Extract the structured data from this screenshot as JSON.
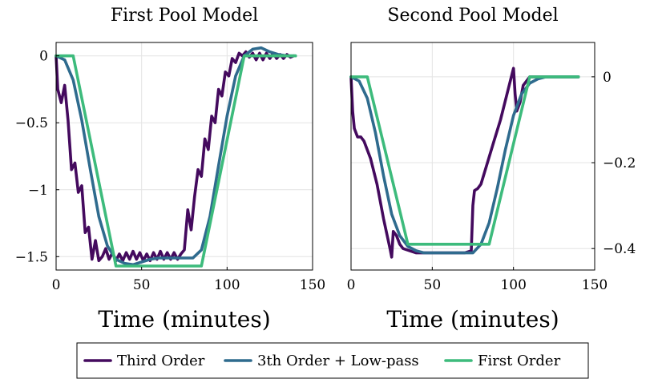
{
  "chart_data": [
    {
      "type": "line",
      "title": "First Pool Model",
      "xlabel": "Time (minutes)",
      "ylabel": "",
      "xlim": [
        0,
        150
      ],
      "ylim": [
        -1.6,
        0.1
      ],
      "xticks": [
        0,
        50,
        100,
        150
      ],
      "xtick_labels": [
        "0",
        "50",
        "100",
        "150"
      ],
      "yticks": [
        0,
        -0.5,
        -1,
        -1.5
      ],
      "ytick_labels": [
        "0",
        "−0.5",
        "−1",
        "−1.5"
      ],
      "y_axis_side": "left",
      "grid": true,
      "series": [
        {
          "name": "Third Order",
          "color": "#440a5e",
          "x": [
            0,
            1,
            3,
            5,
            7,
            9,
            11,
            13,
            15,
            17,
            19,
            21,
            23,
            25,
            27,
            29,
            31,
            33,
            35,
            37,
            39,
            41,
            43,
            45,
            47,
            49,
            51,
            53,
            55,
            57,
            59,
            61,
            63,
            65,
            67,
            69,
            71,
            73,
            75,
            77,
            79,
            81,
            83,
            85,
            87,
            89,
            91,
            93,
            95,
            97,
            99,
            101,
            103,
            105,
            107,
            109,
            111,
            113,
            115,
            117,
            119,
            121,
            123,
            125,
            127,
            129,
            131,
            133,
            135,
            137,
            139
          ],
          "y": [
            0,
            -0.25,
            -0.35,
            -0.22,
            -0.48,
            -0.85,
            -0.8,
            -1.02,
            -0.97,
            -1.32,
            -1.28,
            -1.52,
            -1.38,
            -1.53,
            -1.5,
            -1.44,
            -1.52,
            -1.47,
            -1.53,
            -1.48,
            -1.53,
            -1.47,
            -1.52,
            -1.46,
            -1.52,
            -1.47,
            -1.53,
            -1.48,
            -1.53,
            -1.47,
            -1.52,
            -1.46,
            -1.52,
            -1.47,
            -1.52,
            -1.47,
            -1.52,
            -1.48,
            -1.45,
            -1.15,
            -1.3,
            -1.05,
            -0.85,
            -0.9,
            -0.62,
            -0.7,
            -0.45,
            -0.5,
            -0.25,
            -0.3,
            -0.12,
            -0.15,
            -0.02,
            -0.05,
            0.02,
            0.0,
            0.03,
            -0.01,
            0.02,
            -0.03,
            0.02,
            -0.03,
            0.02,
            -0.02,
            0.02,
            -0.02,
            0.01,
            -0.02,
            0.01,
            -0.01,
            0.0
          ]
        },
        {
          "name": "3th Order + Low-pass",
          "color": "#2f6b8e",
          "x": [
            0,
            5,
            10,
            15,
            20,
            25,
            30,
            35,
            40,
            45,
            50,
            55,
            60,
            65,
            70,
            75,
            80,
            85,
            90,
            95,
            100,
            105,
            110,
            115,
            120,
            125,
            130,
            135,
            140
          ],
          "y": [
            0,
            -0.03,
            -0.18,
            -0.48,
            -0.85,
            -1.2,
            -1.42,
            -1.52,
            -1.55,
            -1.56,
            -1.54,
            -1.52,
            -1.51,
            -1.51,
            -1.51,
            -1.51,
            -1.51,
            -1.45,
            -1.2,
            -0.82,
            -0.45,
            -0.15,
            0.0,
            0.05,
            0.06,
            0.03,
            0.01,
            0.0,
            0.0
          ]
        },
        {
          "name": "First Order",
          "color": "#3dbb7c",
          "x": [
            0,
            10,
            35,
            85,
            110,
            140
          ],
          "y": [
            0,
            0,
            -1.57,
            -1.57,
            0,
            0
          ]
        }
      ]
    },
    {
      "type": "line",
      "title": "Second Pool Model",
      "xlabel": "Time (minutes)",
      "ylabel": "",
      "xlim": [
        0,
        150
      ],
      "ylim": [
        -0.45,
        0.08
      ],
      "xticks": [
        0,
        50,
        100,
        150
      ],
      "xtick_labels": [
        "0",
        "50",
        "100",
        "150"
      ],
      "yticks": [
        0,
        -0.2,
        -0.4
      ],
      "ytick_labels": [
        "0",
        "−0.2",
        "−0.4"
      ],
      "y_axis_side": "right",
      "grid": true,
      "series": [
        {
          "name": "Third Order",
          "color": "#440a5e",
          "x": [
            0,
            1,
            2,
            4,
            6,
            8,
            12,
            16,
            20,
            24,
            25,
            26,
            28,
            30,
            32,
            36,
            40,
            50,
            60,
            70,
            74,
            75,
            76,
            78,
            80,
            84,
            88,
            92,
            96,
            100,
            101,
            102,
            104,
            106,
            110,
            115,
            120,
            130,
            140
          ],
          "y": [
            0,
            -0.08,
            -0.12,
            -0.14,
            -0.14,
            -0.15,
            -0.19,
            -0.25,
            -0.33,
            -0.4,
            -0.42,
            -0.36,
            -0.37,
            -0.39,
            -0.4,
            -0.405,
            -0.41,
            -0.41,
            -0.41,
            -0.41,
            -0.405,
            -0.3,
            -0.265,
            -0.26,
            -0.25,
            -0.2,
            -0.15,
            -0.1,
            -0.04,
            0.02,
            -0.04,
            -0.08,
            -0.06,
            -0.02,
            0.0,
            0.0,
            0.0,
            0.0,
            0.0
          ]
        },
        {
          "name": "3th Order + Low-pass",
          "color": "#2f6b8e",
          "x": [
            0,
            5,
            10,
            15,
            20,
            25,
            30,
            35,
            40,
            45,
            50,
            55,
            60,
            65,
            70,
            75,
            80,
            85,
            90,
            95,
            100,
            105,
            110,
            115,
            120,
            125,
            130,
            140
          ],
          "y": [
            0,
            -0.01,
            -0.05,
            -0.13,
            -0.23,
            -0.32,
            -0.37,
            -0.395,
            -0.405,
            -0.41,
            -0.41,
            -0.41,
            -0.41,
            -0.41,
            -0.41,
            -0.41,
            -0.39,
            -0.34,
            -0.26,
            -0.17,
            -0.09,
            -0.04,
            -0.015,
            -0.005,
            0.0,
            0.0,
            0.0,
            0.0
          ]
        },
        {
          "name": "First Order",
          "color": "#3dbb7c",
          "x": [
            0,
            10,
            35,
            85,
            110,
            140
          ],
          "y": [
            0,
            0,
            -0.39,
            -0.39,
            0,
            0
          ]
        }
      ]
    }
  ],
  "legend": {
    "placement": "bottom-center",
    "entries": [
      {
        "label": "Third Order",
        "color": "#440a5e"
      },
      {
        "label": "3th Order + Low-pass",
        "color": "#2f6b8e"
      },
      {
        "label": "First Order",
        "color": "#3dbb7c"
      }
    ]
  }
}
